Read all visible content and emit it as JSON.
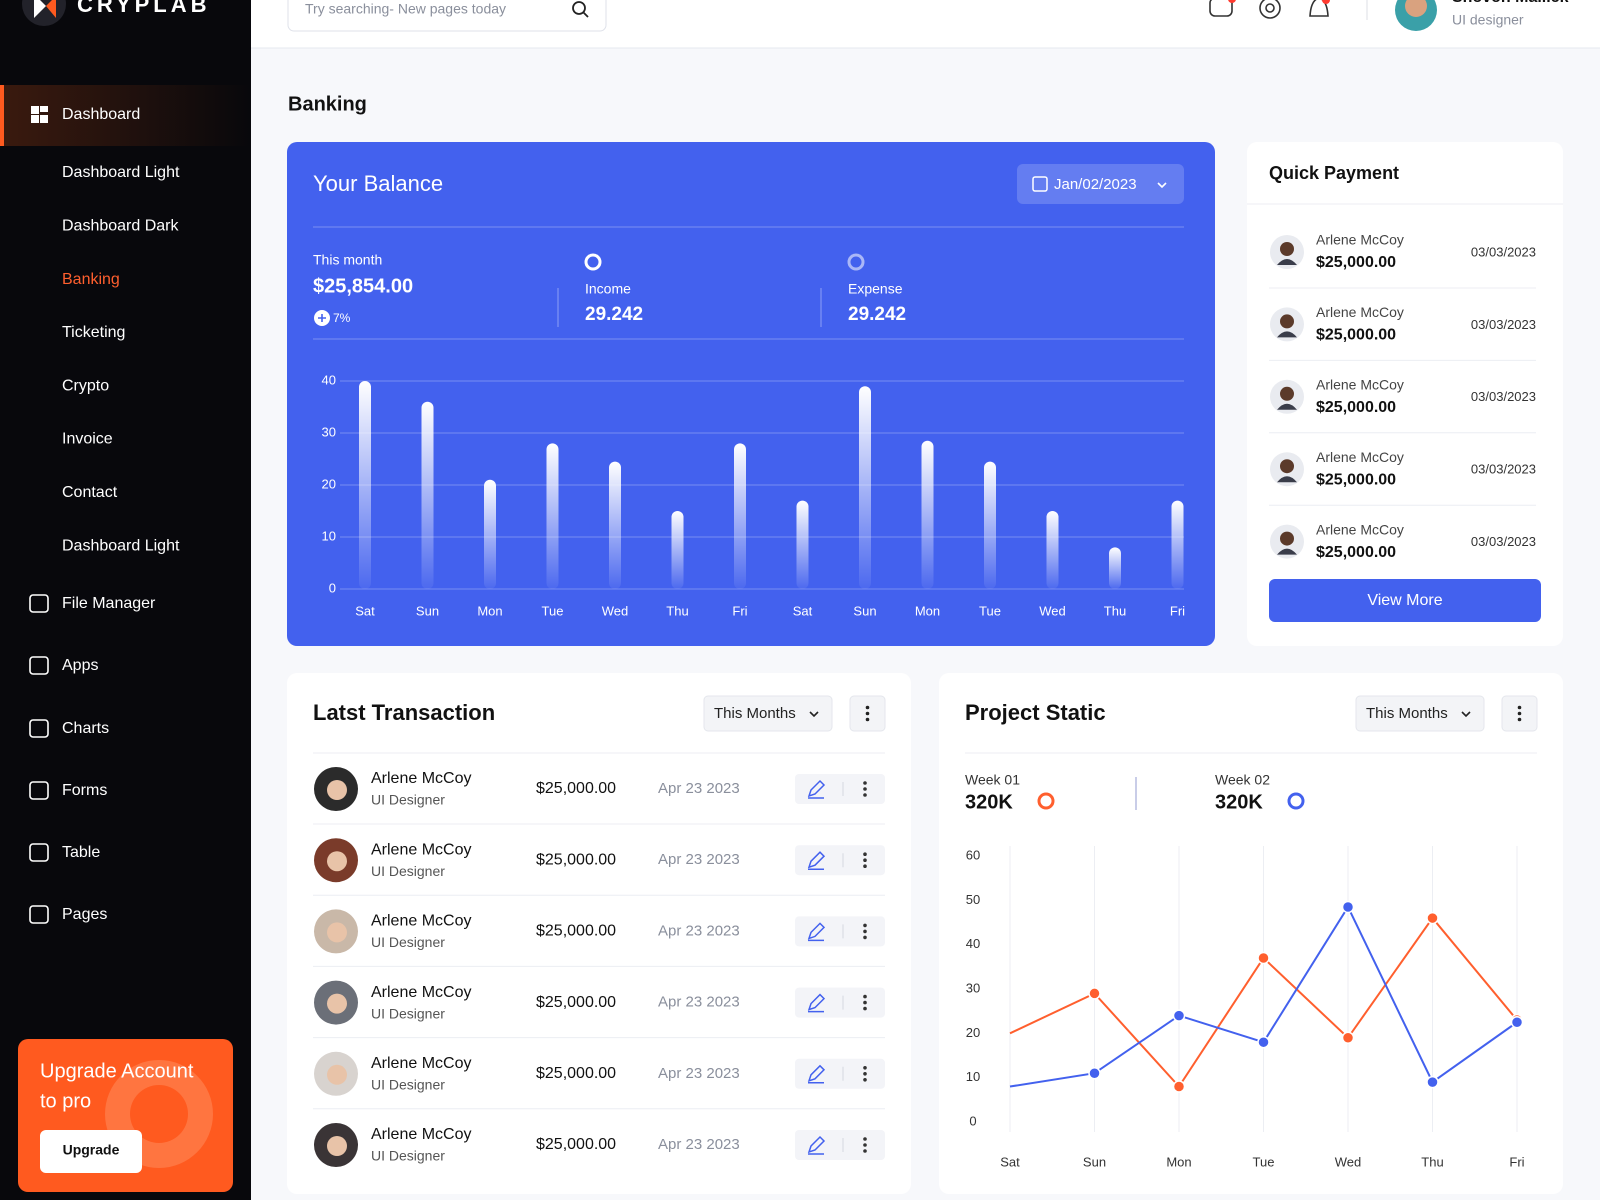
{
  "sidebar": {
    "brand": "CRYPLAB",
    "menu": [
      "Dashboard",
      "File Manager",
      "Apps",
      "Charts",
      "Forms",
      "Table",
      "Pages"
    ],
    "submenu": [
      "Dashboard Light",
      "Dashboard Dark",
      "Banking",
      "Ticketing",
      "Crypto",
      "Invoice",
      "Contact",
      "Dashboard Light"
    ],
    "upgrade": {
      "lines": [
        "Upgrade Account",
        "to pro"
      ],
      "button": "Upgrade"
    }
  },
  "header": {
    "search_placeholder": "Try searching- New pages today",
    "user_name": "Shovon Mallick",
    "user_role": "UI designer"
  },
  "page_title": "Banking",
  "balance": {
    "title": "Your Balance",
    "date": "Jan/02/2023",
    "month_label": "This month",
    "month_value": "$25,854.00",
    "change": "7%",
    "income_label": "Income",
    "income_value": "29.242",
    "expense_label": "Expense",
    "expense_value": "29.242"
  },
  "quick_payment": {
    "title": "Quick Payment",
    "rows": [
      {
        "name": "Arlene McCoy",
        "amount": "$25,000.00",
        "date": "03/03/2023"
      },
      {
        "name": "Arlene McCoy",
        "amount": "$25,000.00",
        "date": "03/03/2023"
      },
      {
        "name": "Arlene McCoy",
        "amount": "$25,000.00",
        "date": "03/03/2023"
      },
      {
        "name": "Arlene McCoy",
        "amount": "$25,000.00",
        "date": "03/03/2023"
      },
      {
        "name": "Arlene McCoy",
        "amount": "$25,000.00",
        "date": "03/03/2023"
      }
    ],
    "button": "View More"
  },
  "transactions": {
    "title": "Latst Transaction",
    "filter": "This Months",
    "rows": [
      {
        "name": "Arlene McCoy",
        "role": "UI Designer",
        "amount": "$25,000.00",
        "date": "Apr 23 2023"
      },
      {
        "name": "Arlene McCoy",
        "role": "UI Designer",
        "amount": "$25,000.00",
        "date": "Apr 23 2023"
      },
      {
        "name": "Arlene McCoy",
        "role": "UI Designer",
        "amount": "$25,000.00",
        "date": "Apr 23 2023"
      },
      {
        "name": "Arlene McCoy",
        "role": "UI Designer",
        "amount": "$25,000.00",
        "date": "Apr 23 2023"
      },
      {
        "name": "Arlene McCoy",
        "role": "UI Designer",
        "amount": "$25,000.00",
        "date": "Apr 23 2023"
      },
      {
        "name": "Arlene McCoy",
        "role": "UI Designer",
        "amount": "$25,000.00",
        "date": "Apr 23 2023"
      }
    ]
  },
  "project": {
    "title": "Project Static",
    "filter": "This Months"
  },
  "chart_data": [
    {
      "type": "bar",
      "categories": [
        "Sat",
        "Sun",
        "Mon",
        "Tue",
        "Wed",
        "Thu",
        "Fri",
        "Sat",
        "Sun",
        "Mon",
        "Tue",
        "Wed",
        "Thu",
        "Fri"
      ],
      "values": [
        40,
        36,
        21,
        28,
        24.5,
        15,
        28,
        17,
        39,
        28.5,
        24.5,
        15,
        8,
        17
      ],
      "color": "#ffffff",
      "ylim": [
        0,
        40
      ],
      "yticks": [
        0,
        10,
        20,
        30,
        40
      ],
      "grid": true
    },
    {
      "type": "line",
      "categories": [
        "Sat",
        "Sun",
        "Mon",
        "Tue",
        "Wed",
        "Thu",
        "Fri"
      ],
      "series": [
        {
          "name": "Week 01",
          "color": "#ff5f2e",
          "values": [
            20,
            29,
            8,
            37,
            19,
            46,
            23
          ]
        },
        {
          "name": "Week 02",
          "color": "#4361ee",
          "values": [
            8,
            11,
            24,
            18,
            48.5,
            9,
            22.5
          ]
        }
      ],
      "series_totals": [
        "320K",
        "320K"
      ],
      "ylim": [
        0,
        60
      ],
      "yticks": [
        0,
        10,
        20,
        30,
        40,
        50,
        60
      ],
      "grid": "vertical"
    }
  ]
}
